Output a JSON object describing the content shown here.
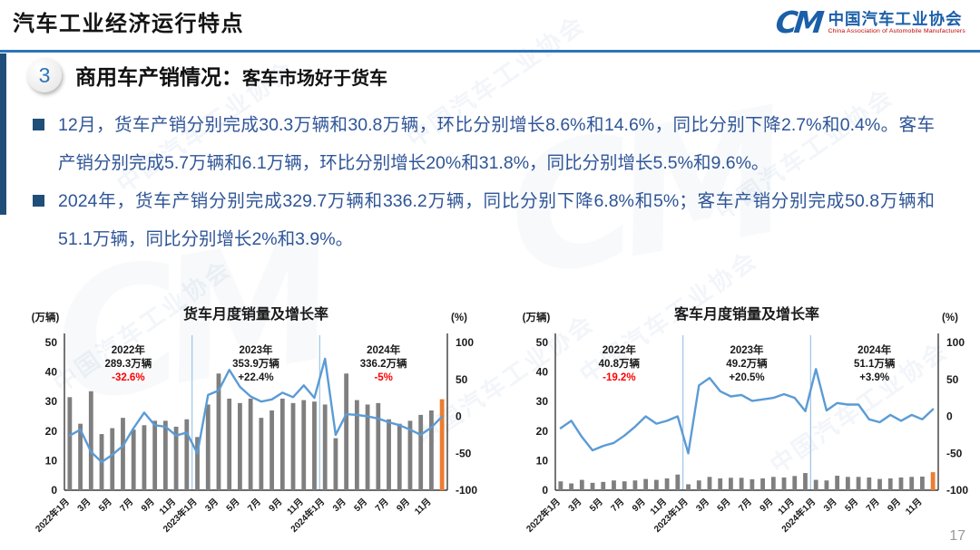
{
  "header": {
    "title": "汽车工业经济运行特点",
    "logo": {
      "mark": "CM",
      "org_cn": "中国汽车工业协会",
      "org_en": "China Association of Automobile Manufacturers"
    }
  },
  "section": {
    "number": "3",
    "title_main": "商用车产销情况：",
    "title_sub": "客车市场好于货车"
  },
  "bullets": [
    {
      "text": "12月，货车产销分别完成30.3万辆和30.8万辆，环比分别增长8.6%和14.6%，同比分别下降2.7%和0.4%。客车产销分别完成5.7万辆和6.1万辆，环比分别增长20%和31.8%，同比分别增长5.5%和9.6%。"
    },
    {
      "text": "2024年，货车产销分别完成329.7万辆和336.2万辆，同比分别下降6.8%和5%；客车产销分别完成50.8万辆和51.1万辆，同比分别增长2%和3.9%。"
    }
  ],
  "watermark": "中国汽车工业协会",
  "page_number": "17",
  "colors": {
    "accent_blue": "#2E75B6",
    "text_blue": "#2F5597",
    "bar_gray": "#7F7F7F",
    "bar_orange": "#ED7D31",
    "line_blue": "#5B9BD5",
    "annotation_red": "#FF0000",
    "annotation_black": "#1a1a1a",
    "separator_blue": "#9DC3E6",
    "axis_dark": "#3b3b3b"
  },
  "chart_data": [
    {
      "type": "bar+line",
      "name": "truck-monthly-chart",
      "title": "货车月度销量及增长率",
      "left_axis": {
        "unit": "(万辆)",
        "range": [
          0,
          50
        ],
        "ticks": [
          0,
          10,
          20,
          30,
          40,
          50
        ]
      },
      "right_axis": {
        "unit": "(%)",
        "range": [
          -100,
          100
        ],
        "ticks": [
          -100,
          -50,
          0,
          50,
          100
        ]
      },
      "x_tick_labels": [
        "2022年1月",
        "3月",
        "5月",
        "7月",
        "9月",
        "11月",
        "2023年1月",
        "3月",
        "5月",
        "7月",
        "9月",
        "11月",
        "2024年1月",
        "3月",
        "5月",
        "7月",
        "9月",
        "11月"
      ],
      "bars": {
        "name": "月度销量(万辆)",
        "values": [
          31.5,
          22.5,
          33.5,
          19,
          21,
          24.5,
          20.5,
          22,
          23.5,
          23.5,
          21.5,
          24,
          18,
          29,
          39.5,
          31,
          29.5,
          31,
          24.5,
          27,
          31,
          29.5,
          30.5,
          30,
          29,
          17.6,
          39.5,
          30.5,
          29,
          29.5,
          24,
          22.5,
          23.5,
          25.5,
          27,
          30.8
        ]
      },
      "line": {
        "name": "同比增长率(%)",
        "values": [
          -26,
          -18,
          -48,
          -62,
          -52,
          -40,
          -16,
          5,
          -12,
          -14,
          -26,
          -22,
          -50,
          29,
          35,
          63,
          40,
          27,
          20,
          23,
          32,
          26,
          42,
          25,
          78,
          -25,
          3,
          2,
          0,
          -3,
          -8,
          -12,
          -18,
          -25,
          -15,
          -0.4
        ]
      },
      "annotations": [
        {
          "year": "2022年",
          "total": "289.3万辆",
          "pct": "-32.6%",
          "pct_color": "red"
        },
        {
          "year": "2023年",
          "total": "353.9万辆",
          "pct": "+22.4%",
          "pct_color": "black"
        },
        {
          "year": "2024年",
          "total": "336.2万辆",
          "pct": "-5%",
          "pct_color": "red"
        }
      ],
      "separators_at_index": [
        12,
        24
      ],
      "highlight_last_bar": true
    },
    {
      "type": "bar+line",
      "name": "bus-monthly-chart",
      "title": "客车月度销量及增长率",
      "left_axis": {
        "unit": "(万辆)",
        "range": [
          0,
          50
        ],
        "ticks": [
          0,
          10,
          20,
          30,
          40,
          50
        ]
      },
      "right_axis": {
        "unit": "(%)",
        "range": [
          -100,
          100
        ],
        "ticks": [
          -100,
          -50,
          0,
          50,
          100
        ]
      },
      "x_tick_labels": [
        "2022年1月",
        "3月",
        "5月",
        "7月",
        "9月",
        "11月",
        "2023年1月",
        "3月",
        "5月",
        "7月",
        "9月",
        "11月",
        "2024年1月",
        "3月",
        "5月",
        "7月",
        "9月",
        "11月"
      ],
      "bars": {
        "name": "月度销量(万辆)",
        "values": [
          3.0,
          2.3,
          3.5,
          2.5,
          2.8,
          3.3,
          3.0,
          3.3,
          3.8,
          3.5,
          4.0,
          5.3,
          2.0,
          3.3,
          4.5,
          4.0,
          4.2,
          4.2,
          3.7,
          4.0,
          4.5,
          4.3,
          4.8,
          5.8,
          3.5,
          3.3,
          4.9,
          4.5,
          4.5,
          4.3,
          3.8,
          4.0,
          4.3,
          4.5,
          4.6,
          6.1
        ]
      },
      "line": {
        "name": "同比增长率(%)",
        "values": [
          -16,
          -6,
          -28,
          -46,
          -40,
          -36,
          -26,
          -14,
          0,
          -10,
          -6,
          0,
          -50,
          42,
          52,
          34,
          27,
          29,
          21,
          23,
          25,
          30,
          25,
          7,
          64,
          8,
          18,
          16,
          16,
          -4,
          -8,
          2,
          -6,
          2,
          -4,
          9.6
        ]
      },
      "annotations": [
        {
          "year": "2022年",
          "total": "40.8万辆",
          "pct": "-19.2%",
          "pct_color": "red"
        },
        {
          "year": "2023年",
          "total": "49.2万辆",
          "pct": "+20.5%",
          "pct_color": "black"
        },
        {
          "year": "2024年",
          "total": "51.1万辆",
          "pct": "+3.9%",
          "pct_color": "black"
        }
      ],
      "separators_at_index": [
        12,
        24
      ],
      "highlight_last_bar": true
    }
  ]
}
